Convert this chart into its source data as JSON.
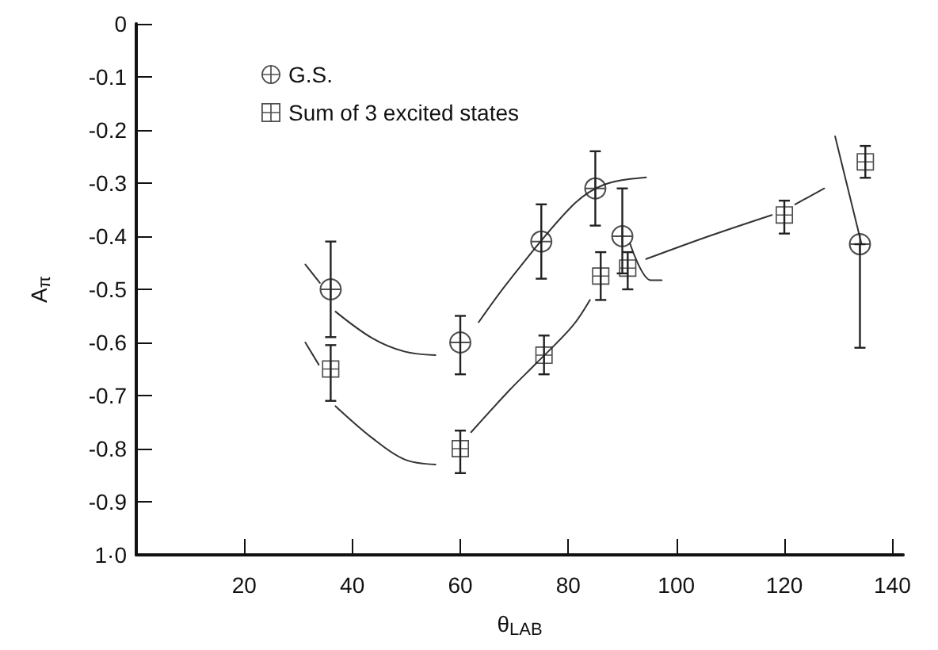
{
  "chart_data": {
    "type": "scatter",
    "xlabel": "θ$_{LAB}$",
    "ylabel": "A$_{π}$",
    "xlim": [
      0,
      142
    ],
    "xticks": [
      20,
      40,
      60,
      80,
      100,
      120,
      140
    ],
    "ylim": [
      -1,
      0
    ],
    "yticks": [
      0,
      -0.1,
      -0.2,
      -0.3,
      -0.4,
      -0.5,
      -0.6,
      -0.7,
      -0.8,
      -0.9,
      {
        "value": -1,
        "label": "1·0"
      }
    ],
    "legend": "top left",
    "grid": false,
    "series": [
      {
        "name": "G.S.",
        "color": "#222222",
        "marker": "circle",
        "x": [
          36,
          60,
          75,
          85,
          90,
          134
        ],
        "values": [
          -0.5,
          -0.6,
          -0.41,
          -0.31,
          -0.4,
          -0.415
        ],
        "errors": [
          [
            -0.59,
            -0.41
          ],
          [
            -0.66,
            -0.55
          ],
          [
            -0.48,
            -0.34
          ],
          [
            -0.38,
            -0.24
          ],
          [
            -0.47,
            -0.31
          ],
          [
            -0.61,
            -0.415
          ]
        ]
      },
      {
        "name": "Sum of 3 excited states",
        "color": "#222222",
        "marker": "square",
        "x": [
          36,
          60,
          75.5,
          86,
          91,
          120,
          135
        ],
        "values": [
          -0.65,
          -0.8,
          -0.624,
          -0.475,
          -0.46,
          -0.36,
          -0.26
        ],
        "errors": [
          [
            -0.71,
            -0.605
          ],
          [
            -0.846,
            -0.766
          ],
          [
            -0.66,
            -0.587
          ],
          [
            -0.52,
            -0.43
          ],
          [
            -0.5,
            -0.43
          ],
          [
            -0.395,
            -0.333
          ],
          [
            -0.29,
            -0.23
          ]
        ]
      },
      {
        "type": "line",
        "color": "#333333",
        "x": [
          31.3,
          34
        ],
        "values": [
          -0.453,
          -0.488
        ]
      },
      {
        "type": "line",
        "color": "#333333",
        "x": [
          36.9,
          43.7,
          49.6,
          55.4
        ],
        "values": [
          -0.542,
          -0.592,
          -0.617,
          -0.624
        ]
      },
      {
        "type": "line",
        "color": "#333333",
        "x": [
          63.4,
          69.1,
          80.7,
          86.6,
          94.4
        ],
        "values": [
          -0.562,
          -0.483,
          -0.343,
          -0.303,
          -0.289
        ]
      },
      {
        "type": "line",
        "color": "#333333",
        "x": [
          91.4,
          95.3,
          97.3
        ],
        "values": [
          -0.413,
          -0.483,
          -0.483
        ]
      },
      {
        "type": "line",
        "color": "#333333",
        "x": [
          31.3,
          33.8
        ],
        "values": [
          -0.6,
          -0.642
        ]
      },
      {
        "type": "line",
        "color": "#333333",
        "x": [
          36.9,
          43.7,
          49.6,
          55.4
        ],
        "values": [
          -0.72,
          -0.78,
          -0.82,
          -0.83
        ]
      },
      {
        "type": "line",
        "color": "#333333",
        "x": [
          62,
          69.1,
          74,
          80.7,
          84
        ],
        "values": [
          -0.769,
          -0.69,
          -0.64,
          -0.57,
          -0.52
        ]
      },
      {
        "type": "line",
        "color": "#333333",
        "x": [
          94.4,
          106,
          117.7
        ],
        "values": [
          -0.443,
          -0.4,
          -0.36
        ]
      },
      {
        "type": "line",
        "color": "#333333",
        "x": [
          122,
          127.4
        ],
        "values": [
          -0.34,
          -0.31
        ]
      },
      {
        "type": "line",
        "color": "#333333",
        "x": [
          129.4,
          134.3
        ],
        "values": [
          -0.212,
          -0.415
        ]
      }
    ]
  }
}
